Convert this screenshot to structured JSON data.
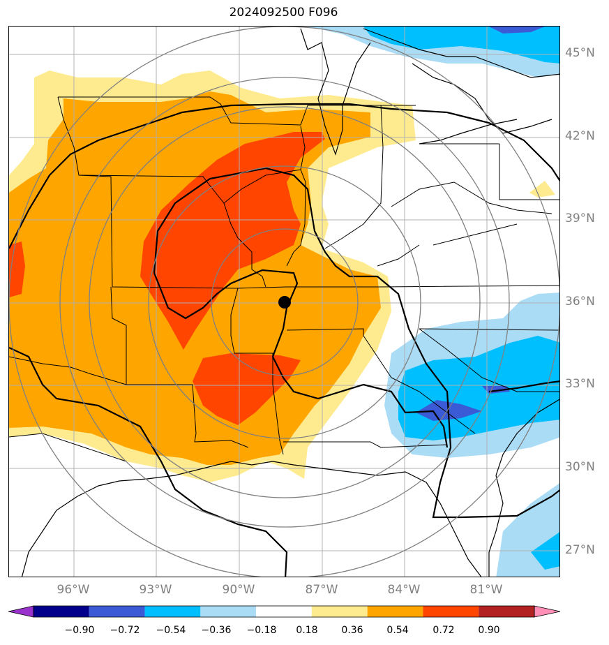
{
  "title": "2024092500 F096",
  "lat_labels": [
    "45°N",
    "42°N",
    "39°N",
    "36°N",
    "33°N",
    "30°N",
    "27°N"
  ],
  "lon_labels": [
    "96°W",
    "93°W",
    "90°W",
    "87°W",
    "84°W",
    "81°W"
  ],
  "colorbar": {
    "ticks": [
      "−0.90",
      "−0.72",
      "−0.54",
      "−0.36",
      "−0.18",
      "0.18",
      "0.36",
      "0.54",
      "0.72",
      "0.90"
    ],
    "colors": [
      "#9932cc",
      "#00008b",
      "#3b5bd6",
      "#00bfff",
      "#aadcf6",
      "#ffffff",
      "#ffeb8f",
      "#ffa500",
      "#ff4500",
      "#b22222",
      "#ff8fb6"
    ]
  },
  "colors": {
    "light_yellow": "#ffeb8f",
    "orange": "#ffa500",
    "red_orange": "#ff4500",
    "light_blue": "#aadcf6",
    "deep_sky_blue": "#00bfff",
    "royal_blue": "#3b5bd6",
    "contour": "#000000",
    "range_rings": "#808080",
    "gridlines": "#b0b0b0"
  }
}
